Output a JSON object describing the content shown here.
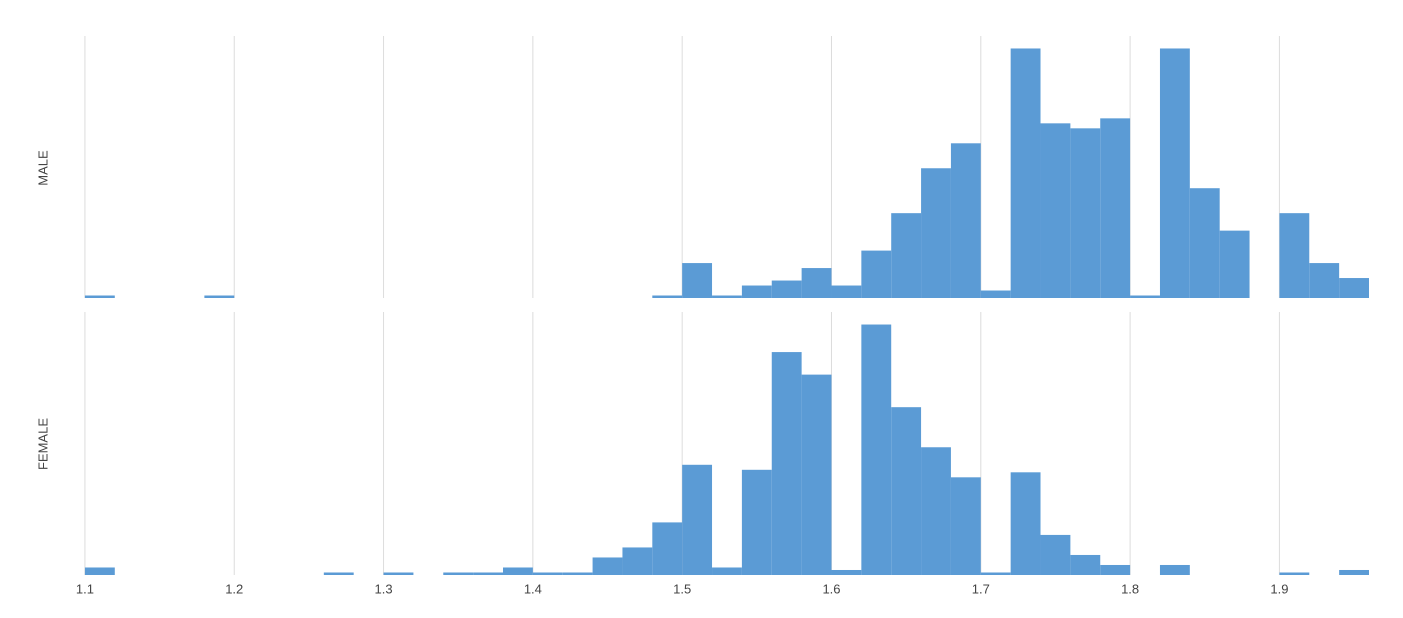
{
  "chart_data": [
    {
      "type": "histogram",
      "ylabel": "MALE",
      "color": "#5b9bd5",
      "grid": true,
      "bins": [
        1.1,
        1.12,
        1.14,
        1.16,
        1.18,
        1.2,
        1.22,
        1.24,
        1.26,
        1.28,
        1.3,
        1.32,
        1.34,
        1.36,
        1.38,
        1.4,
        1.42,
        1.44,
        1.46,
        1.48,
        1.5,
        1.52,
        1.54,
        1.56,
        1.58,
        1.6,
        1.62,
        1.64,
        1.66,
        1.68,
        1.7,
        1.72,
        1.74,
        1.76,
        1.78,
        1.8,
        1.82,
        1.84,
        1.86,
        1.88,
        1.9,
        1.92,
        1.94,
        1.96
      ],
      "values": [
        1,
        0,
        0,
        0,
        1,
        0,
        0,
        0,
        0,
        0,
        0,
        0,
        0,
        0,
        0,
        0,
        0,
        0,
        0,
        1,
        14,
        1,
        5,
        7,
        12,
        5,
        19,
        34,
        52,
        62,
        3,
        100,
        70,
        68,
        72,
        1,
        100,
        44,
        27,
        0,
        34,
        14,
        8
      ],
      "xlim": [
        1.09,
        1.96
      ],
      "ylim": [
        0,
        105
      ]
    },
    {
      "type": "histogram",
      "ylabel": "FEMALE",
      "color": "#5b9bd5",
      "grid": true,
      "bins": [
        1.1,
        1.12,
        1.14,
        1.16,
        1.18,
        1.2,
        1.22,
        1.24,
        1.26,
        1.28,
        1.3,
        1.32,
        1.34,
        1.36,
        1.38,
        1.4,
        1.42,
        1.44,
        1.46,
        1.48,
        1.5,
        1.52,
        1.54,
        1.56,
        1.58,
        1.6,
        1.62,
        1.64,
        1.66,
        1.68,
        1.7,
        1.72,
        1.74,
        1.76,
        1.78,
        1.8,
        1.82,
        1.84,
        1.86,
        1.88,
        1.9,
        1.92,
        1.94,
        1.96
      ],
      "values": [
        3,
        0,
        0,
        0,
        0,
        0,
        0,
        0,
        1,
        0,
        1,
        0,
        1,
        1,
        3,
        1,
        1,
        7,
        11,
        21,
        44,
        3,
        42,
        89,
        80,
        2,
        100,
        67,
        51,
        39,
        1,
        41,
        16,
        8,
        4,
        0,
        4,
        0,
        0,
        0,
        1,
        0,
        2
      ],
      "xlim": [
        1.09,
        1.96
      ],
      "ylim": [
        0,
        105
      ],
      "xticks": [
        1.1,
        1.2,
        1.3,
        1.4,
        1.5,
        1.6,
        1.7,
        1.8,
        1.9
      ]
    }
  ]
}
